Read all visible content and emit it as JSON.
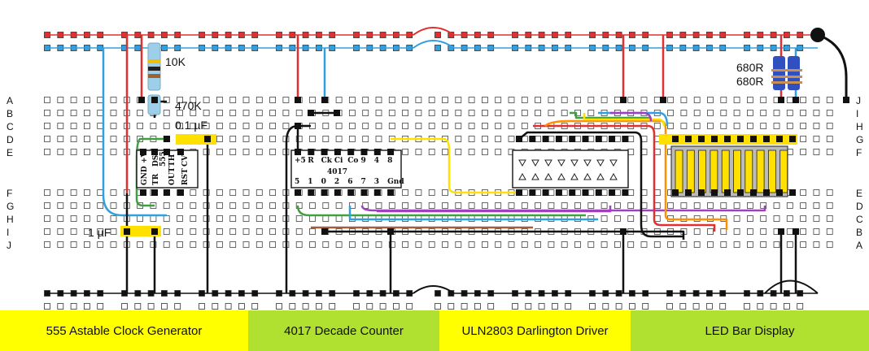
{
  "diagram": {
    "labels": {
      "r1": "10K",
      "r2": "470K",
      "c1": "0.1 µF",
      "c2": "1 µF",
      "rled": "680R",
      "rled2": "680R"
    },
    "chips": {
      "ic555": {
        "pins_top": [
          "GND",
          "+V",
          "DS"
        ],
        "pins_mid": [
          "TR",
          "555",
          "OUT",
          "TH"
        ],
        "pins_bot": [
          "RST",
          "CV"
        ]
      },
      "ic4017": {
        "top": [
          "+5",
          "R",
          "Ck",
          "Ci",
          "Co",
          "9",
          "4",
          "8"
        ],
        "name": "4017",
        "bottom": [
          "5",
          "1",
          "0",
          "2",
          "6",
          "7",
          "3",
          "Gnd"
        ]
      }
    },
    "rows_left": [
      "A",
      "B",
      "C",
      "D",
      "E",
      "F",
      "G",
      "H",
      "I",
      "J"
    ],
    "rows_right": [
      "J",
      "I",
      "H",
      "G",
      "F",
      "E",
      "D",
      "C",
      "B",
      "A"
    ]
  },
  "footer": {
    "sections": [
      {
        "label": "555 Astable Clock Generator",
        "color": "#ffff00"
      },
      {
        "label": "4017 Decade Counter",
        "color": "#b0e030"
      },
      {
        "label": "ULN2803 Darlington Driver",
        "color": "#ffff00"
      },
      {
        "label": "LED Bar Display",
        "color": "#b0e030"
      }
    ]
  }
}
